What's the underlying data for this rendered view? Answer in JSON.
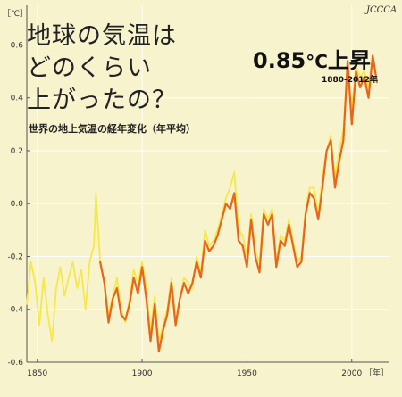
{
  "title_lines": [
    "地球の気温は",
    "どのくらい",
    "上がったの？"
  ],
  "subtitle": "世界の地上気温の経年変化（年平均）",
  "headline": {
    "value": "0.85",
    "unit": "°C",
    "suffix": "上昇"
  },
  "period": "1880-2012年",
  "logo": "JCCCA",
  "colors": {
    "background": "#f7f3cd",
    "grid": "#ffffff",
    "axis": "#555555",
    "older_series": "#f5e84a",
    "main_series": "#e8651c"
  },
  "chart_data": {
    "type": "line",
    "xlabel": "［年］",
    "ylabel": "［℃］",
    "xlim": [
      1845,
      2018
    ],
    "ylim": [
      -0.6,
      0.75
    ],
    "xticks": [
      1850,
      1900,
      1950,
      2000
    ],
    "xtick_labels": [
      "1850",
      "1900",
      "1950",
      "2000"
    ],
    "yticks": [
      -0.6,
      -0.4,
      -0.2,
      0.0,
      0.2,
      0.4,
      0.6
    ],
    "ytick_labels": [
      "-0.6",
      "-0.4",
      "-0.2",
      "0.0",
      "0.2",
      "0.4",
      "0.6"
    ],
    "grid": true,
    "series": [
      {
        "color": "#f5e84a",
        "x": [
          1845,
          1847,
          1849,
          1851,
          1853,
          1855,
          1857,
          1859,
          1861,
          1863,
          1865,
          1867,
          1869,
          1871,
          1873,
          1875,
          1877,
          1878,
          1880,
          1882,
          1884,
          1886,
          1888,
          1890,
          1892,
          1894,
          1896,
          1898,
          1900,
          1902,
          1904,
          1906,
          1908,
          1910,
          1912,
          1914,
          1916,
          1918,
          1920,
          1922,
          1924,
          1926,
          1928,
          1930,
          1932,
          1934,
          1936,
          1938,
          1940,
          1942,
          1944,
          1946,
          1948,
          1950,
          1952,
          1954,
          1956,
          1958,
          1960,
          1962,
          1964,
          1966,
          1968,
          1970,
          1972,
          1974,
          1976,
          1978,
          1980,
          1982,
          1984,
          1986,
          1988,
          1990,
          1992,
          1994,
          1996,
          1998,
          2000,
          2002,
          2004,
          2006,
          2008,
          2010,
          2012
        ],
        "y": [
          -0.38,
          -0.22,
          -0.3,
          -0.46,
          -0.28,
          -0.42,
          -0.52,
          -0.32,
          -0.24,
          -0.35,
          -0.28,
          -0.22,
          -0.32,
          -0.25,
          -0.4,
          -0.22,
          -0.16,
          0.04,
          -0.22,
          -0.3,
          -0.42,
          -0.35,
          -0.28,
          -0.4,
          -0.45,
          -0.36,
          -0.25,
          -0.3,
          -0.22,
          -0.32,
          -0.48,
          -0.35,
          -0.52,
          -0.46,
          -0.4,
          -0.28,
          -0.44,
          -0.36,
          -0.28,
          -0.3,
          -0.32,
          -0.2,
          -0.26,
          -0.1,
          -0.16,
          -0.14,
          -0.1,
          -0.04,
          0.02,
          0.06,
          0.12,
          -0.1,
          -0.12,
          -0.2,
          -0.04,
          -0.18,
          -0.22,
          -0.02,
          -0.06,
          -0.02,
          -0.22,
          -0.12,
          -0.14,
          -0.06,
          -0.14,
          -0.22,
          -0.2,
          -0.02,
          0.06,
          0.06,
          -0.04,
          0.1,
          0.2,
          0.26,
          0.1,
          0.2,
          0.28,
          0.52,
          0.36,
          0.52,
          0.48,
          0.5,
          0.44,
          0.56,
          0.46
        ]
      },
      {
        "color": "#e8651c",
        "x": [
          1880,
          1882,
          1884,
          1886,
          1888,
          1890,
          1892,
          1894,
          1896,
          1898,
          1900,
          1902,
          1904,
          1906,
          1908,
          1910,
          1912,
          1914,
          1916,
          1918,
          1920,
          1922,
          1924,
          1926,
          1928,
          1930,
          1932,
          1934,
          1936,
          1938,
          1940,
          1942,
          1944,
          1946,
          1948,
          1950,
          1952,
          1954,
          1956,
          1958,
          1960,
          1962,
          1964,
          1966,
          1968,
          1970,
          1972,
          1974,
          1976,
          1978,
          1980,
          1982,
          1984,
          1986,
          1988,
          1990,
          1992,
          1994,
          1996,
          1998,
          2000,
          2002,
          2004,
          2006,
          2008,
          2010,
          2012
        ],
        "y": [
          -0.22,
          -0.3,
          -0.45,
          -0.36,
          -0.32,
          -0.42,
          -0.44,
          -0.38,
          -0.28,
          -0.34,
          -0.24,
          -0.36,
          -0.52,
          -0.38,
          -0.56,
          -0.48,
          -0.42,
          -0.3,
          -0.46,
          -0.36,
          -0.3,
          -0.34,
          -0.3,
          -0.22,
          -0.28,
          -0.14,
          -0.18,
          -0.16,
          -0.12,
          -0.06,
          0.0,
          -0.02,
          0.04,
          -0.14,
          -0.16,
          -0.24,
          -0.06,
          -0.2,
          -0.26,
          -0.04,
          -0.08,
          -0.04,
          -0.24,
          -0.14,
          -0.16,
          -0.08,
          -0.16,
          -0.24,
          -0.22,
          -0.04,
          0.04,
          0.02,
          -0.06,
          0.06,
          0.2,
          0.24,
          0.06,
          0.16,
          0.24,
          0.54,
          0.3,
          0.5,
          0.44,
          0.48,
          0.4,
          0.56,
          0.46
        ]
      }
    ]
  }
}
